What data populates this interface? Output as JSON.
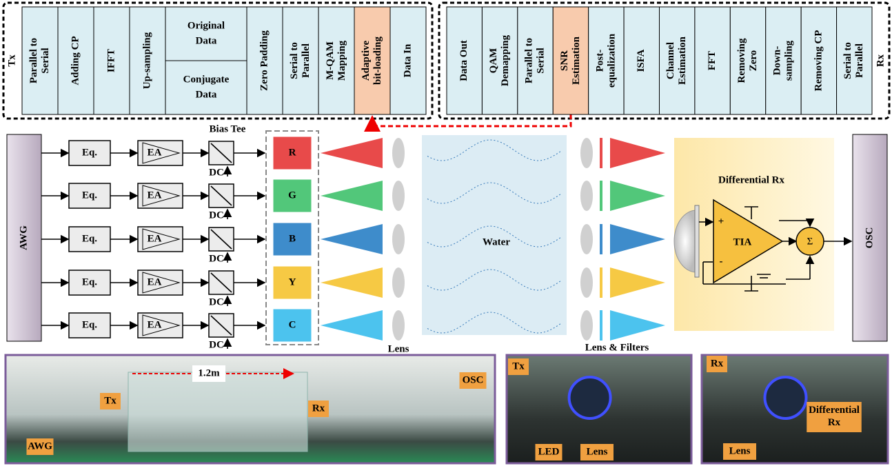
{
  "tx": {
    "label": "Tx",
    "blocks": [
      {
        "lines": [
          "Parallel to",
          "Serial"
        ]
      },
      {
        "lines": [
          "Adding CP"
        ]
      },
      {
        "lines": [
          "IFFT"
        ]
      },
      {
        "lines": [
          "Up-sampling"
        ]
      },
      {
        "cells": [
          [
            "Original",
            "Data"
          ],
          [
            "Conjugate",
            "Data"
          ]
        ]
      },
      {
        "lines": [
          "Zero Padding"
        ]
      },
      {
        "lines": [
          "Serial to",
          "Parallel"
        ]
      },
      {
        "lines": [
          "M-QAM",
          "Mapping"
        ]
      },
      {
        "lines": [
          "Adaptive",
          "bit-loading"
        ],
        "highlight": true
      },
      {
        "lines": [
          "Data In"
        ]
      }
    ]
  },
  "rx": {
    "label": "Rx",
    "blocks": [
      {
        "lines": [
          "Data Out"
        ]
      },
      {
        "lines": [
          "QAM",
          "Demapping"
        ]
      },
      {
        "lines": [
          "Parallel to",
          "Serial"
        ]
      },
      {
        "lines": [
          "SNR",
          "Estimation"
        ],
        "highlight": true
      },
      {
        "lines": [
          "Post-",
          "equalization"
        ]
      },
      {
        "lines": [
          "ISFA"
        ]
      },
      {
        "lines": [
          "Channel",
          "Estimation"
        ]
      },
      {
        "lines": [
          "FFT"
        ]
      },
      {
        "lines": [
          "Removing",
          "Zero"
        ]
      },
      {
        "lines": [
          "Down-",
          "sampling"
        ]
      },
      {
        "lines": [
          "Removing CP"
        ]
      },
      {
        "lines": [
          "Serial to",
          "Parallel"
        ]
      }
    ]
  },
  "main": {
    "awg": "AWG",
    "eq": "Eq.",
    "ea": "EA",
    "bias_tee": "Bias Tee",
    "dc": "DC",
    "leds": [
      {
        "label": "R",
        "color": "#e84a4a"
      },
      {
        "label": "G",
        "color": "#52c77a"
      },
      {
        "label": "B",
        "color": "#3e8ccb"
      },
      {
        "label": "Y",
        "color": "#f6c944"
      },
      {
        "label": "C",
        "color": "#4cc3ee"
      }
    ],
    "lens": "Lens",
    "water": "Water",
    "lens_filters": "Lens & Filters",
    "diff_rx": "Differential Rx",
    "plus": "+",
    "minus": "-",
    "tia": "TIA",
    "sigma": "Σ",
    "osc": "OSC"
  },
  "photos": [
    {
      "labels": [
        "1.2m",
        "Tx",
        "Rx",
        "OSC",
        "AWG"
      ]
    },
    {
      "labels": [
        "Tx",
        "LED",
        "Lens"
      ]
    },
    {
      "labels": [
        "Rx",
        "Differential Rx",
        "Lens"
      ]
    }
  ]
}
